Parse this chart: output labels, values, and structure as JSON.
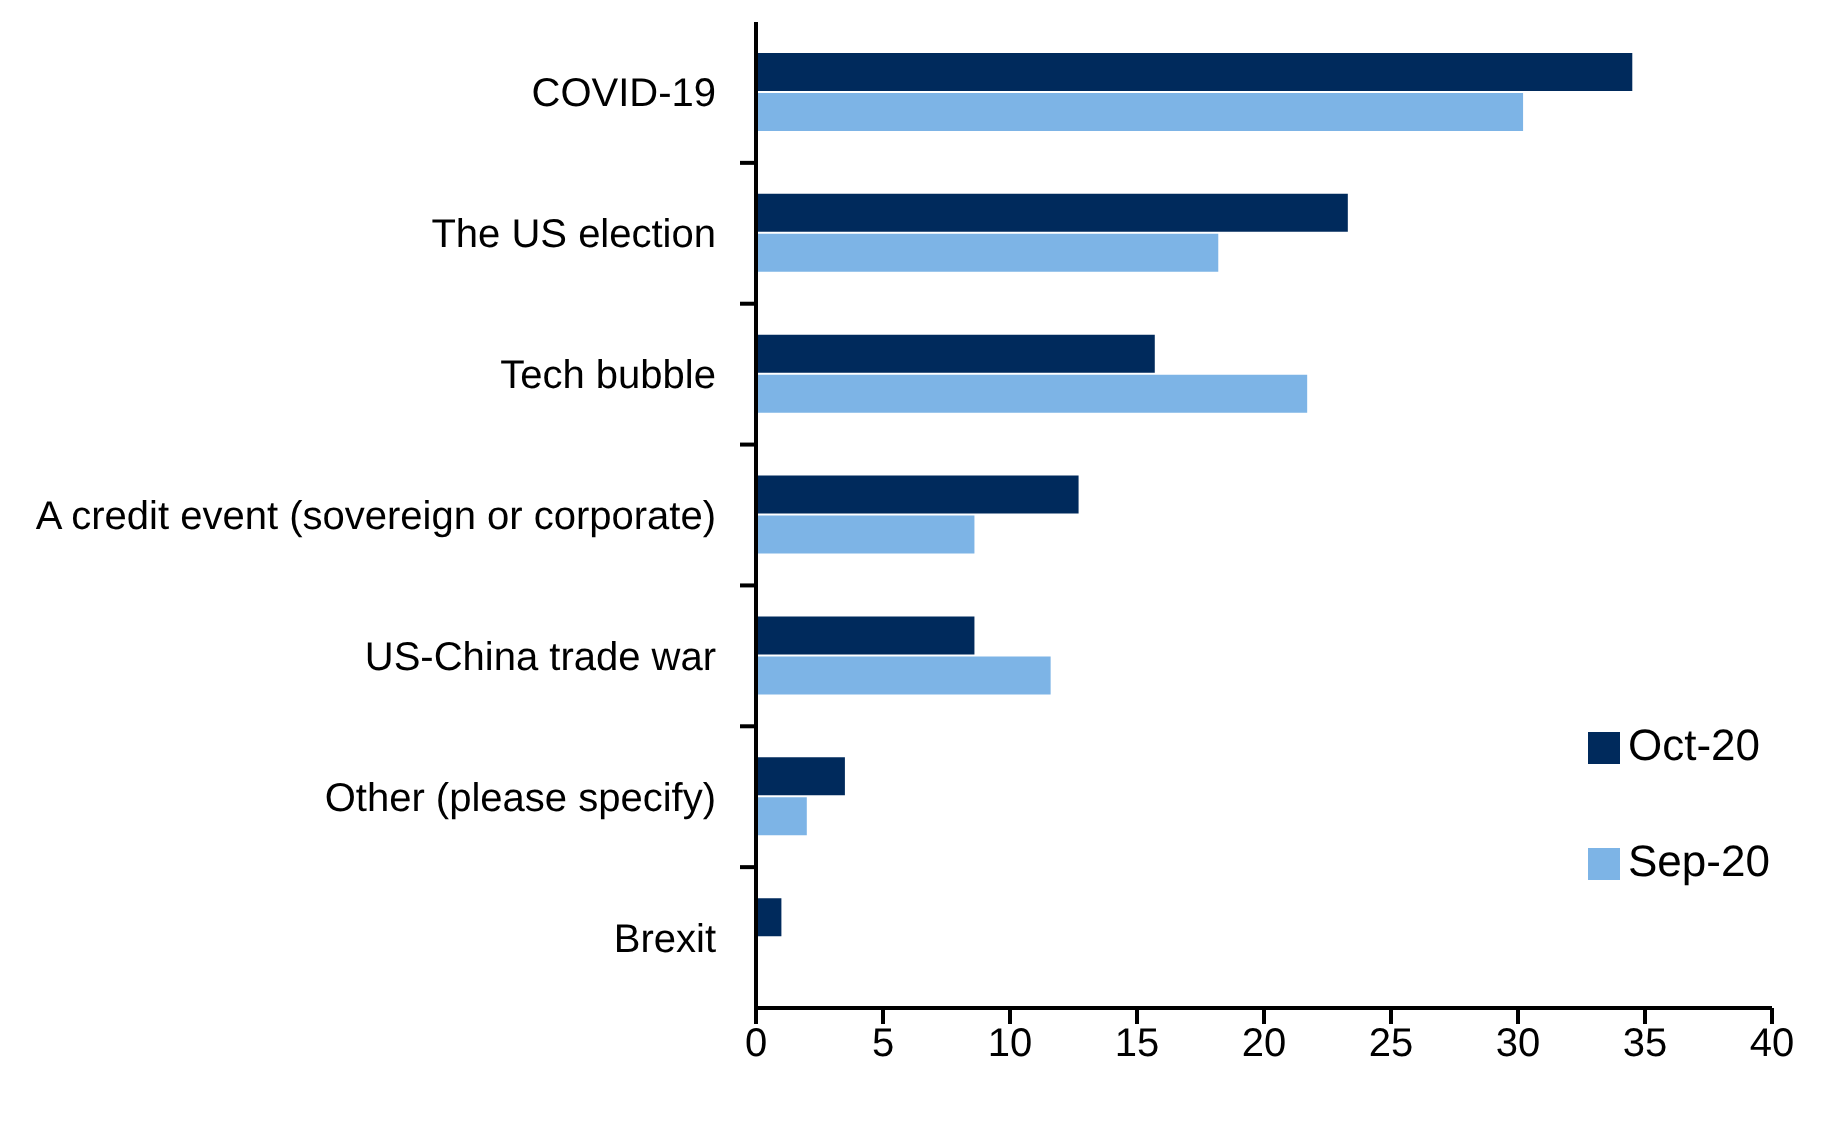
{
  "chart_data": {
    "type": "bar",
    "orientation": "horizontal",
    "categories": [
      "COVID-19",
      "The US election",
      "Tech bubble",
      "A credit event (sovereign or corporate)",
      "US-China trade war",
      "Other (please specify)",
      "Brexit"
    ],
    "series": [
      {
        "name": "Oct-20",
        "color": "#002a5c",
        "values": [
          34.5,
          23.3,
          15.7,
          12.7,
          8.6,
          3.5,
          1.0
        ]
      },
      {
        "name": "Sep-20",
        "color": "#7db4e6",
        "values": [
          30.2,
          18.2,
          21.7,
          8.6,
          11.6,
          2.0,
          null
        ]
      }
    ],
    "xlim": [
      0,
      40
    ],
    "xticks": [
      0,
      5,
      10,
      15,
      20,
      25,
      30,
      35,
      40
    ],
    "legend": "right"
  }
}
